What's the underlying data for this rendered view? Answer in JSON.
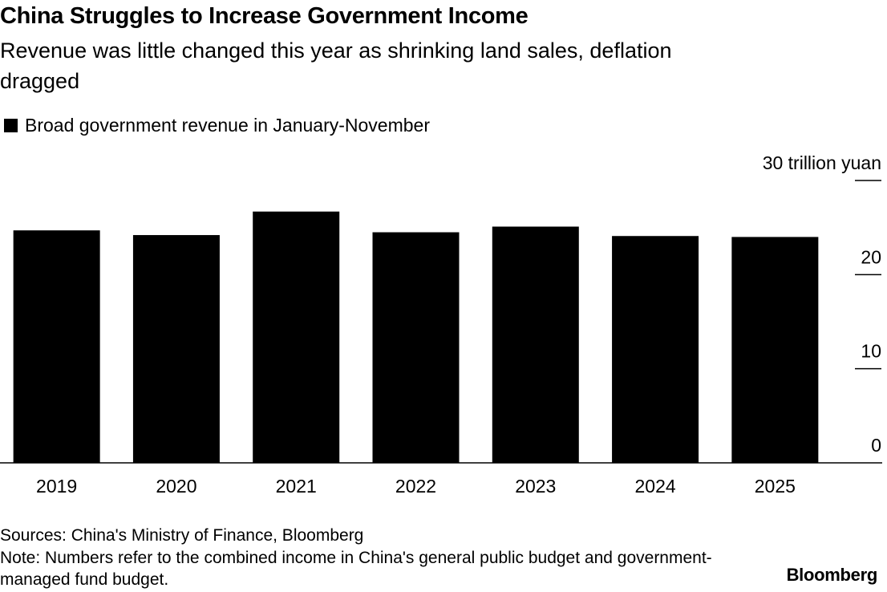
{
  "title": "China Struggles to Increase Government Income",
  "subtitle": "Revenue was little changed this year as shrinking land sales, deflation dragged",
  "legend": {
    "label": "Broad government revenue in January-November",
    "color": "#000000"
  },
  "sources": "Sources: China's Ministry of Finance, Bloomberg",
  "note": "Note: Numbers refer to the combined income in China's general public budget and government-managed fund budget.",
  "brand": "Bloomberg",
  "chart_data": {
    "type": "bar",
    "title": "China Struggles to Increase Government Income",
    "xlabel": "",
    "ylabel": "",
    "categories": [
      "2019",
      "2020",
      "2021",
      "2022",
      "2023",
      "2024",
      "2025"
    ],
    "values": [
      24.7,
      24.2,
      26.7,
      24.5,
      25.1,
      24.1,
      24.0
    ],
    "ylim": [
      0,
      30
    ],
    "yticks": [
      0,
      10,
      20,
      30
    ],
    "ytick_labels": [
      "0",
      "10",
      "20",
      "30 trillion yuan"
    ],
    "grid": false,
    "legend_position": "top-left",
    "series_color": "#000000"
  }
}
